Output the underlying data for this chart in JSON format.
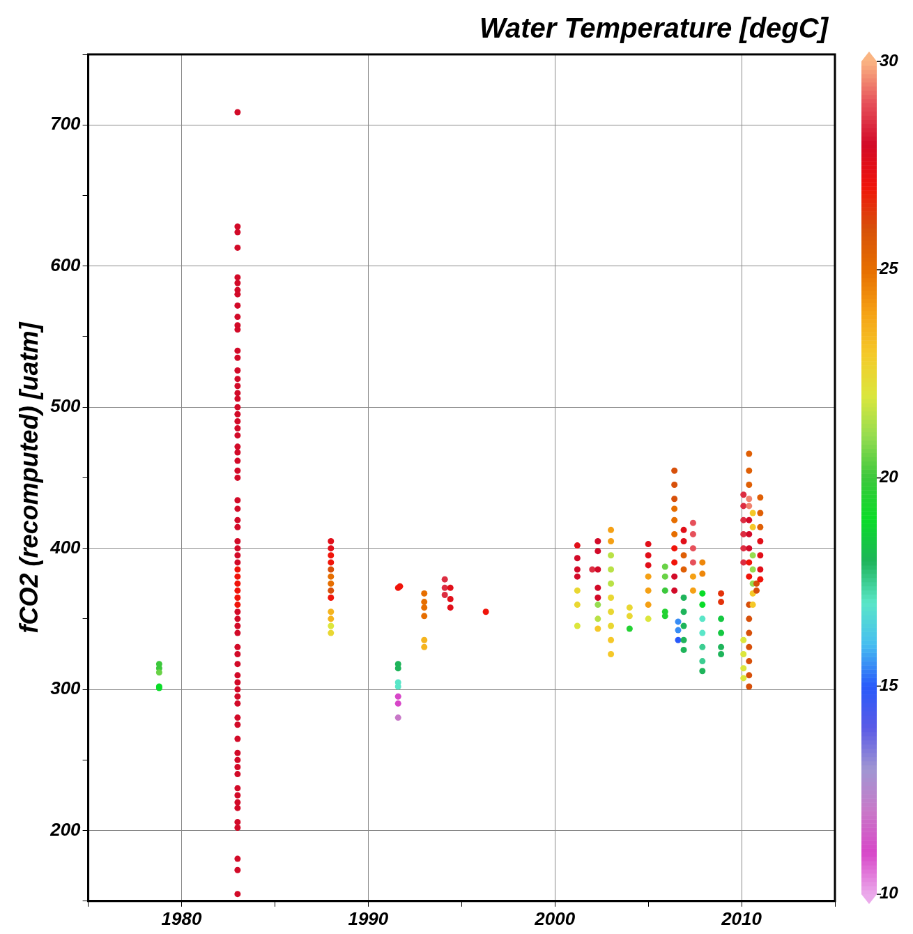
{
  "chart_data": {
    "type": "scatter",
    "ylabel": "fCO2 (recomputed) [uatm]",
    "clabel": "Water Temperature [degC]",
    "xlim": [
      1975,
      2015
    ],
    "xticks": [
      {
        "value": 1975,
        "label": null
      },
      1980,
      {
        "value": 1985,
        "label": null
      },
      1990,
      {
        "value": 1995,
        "label": null
      },
      2000,
      {
        "value": 2005,
        "label": null
      },
      2010,
      {
        "value": 2015,
        "label": null
      }
    ],
    "ylim": [
      150,
      750
    ],
    "yticks": [
      {
        "value": 150,
        "label": null
      },
      200,
      {
        "value": 250,
        "label": null
      },
      300,
      {
        "value": 350,
        "label": null
      },
      400,
      {
        "value": 450,
        "label": null
      },
      500,
      {
        "value": 550,
        "label": null
      },
      600,
      {
        "value": 650,
        "label": null
      },
      700,
      {
        "value": 750,
        "label": null
      }
    ],
    "clim": [
      10,
      30
    ],
    "cticks": [
      10,
      15,
      20,
      25,
      30
    ],
    "grid": true,
    "marker": "circle",
    "x": [
      1978.8,
      1978.8,
      1978.8,
      1978.8,
      1978.8,
      1983,
      1983,
      1983,
      1983,
      1983,
      1983,
      1983,
      1983,
      1983,
      1983,
      1983,
      1983,
      1983,
      1983,
      1983,
      1983,
      1983,
      1983,
      1983,
      1983,
      1983,
      1983,
      1983,
      1983,
      1983,
      1983,
      1983,
      1983,
      1983,
      1983,
      1983,
      1983,
      1983,
      1983,
      1983,
      1983,
      1983,
      1983,
      1983,
      1983,
      1983,
      1983,
      1983,
      1983,
      1983,
      1983,
      1983,
      1983,
      1983,
      1983,
      1983,
      1983,
      1983,
      1983,
      1983,
      1983,
      1983,
      1983,
      1983,
      1983,
      1983,
      1983,
      1983,
      1983,
      1983,
      1983,
      1983,
      1983,
      1983,
      1983,
      1983,
      1988,
      1988,
      1988,
      1988,
      1988,
      1988,
      1988,
      1988,
      1988,
      1988,
      1988,
      1988,
      1988,
      1991.6,
      1991.7,
      1991.6,
      1991.6,
      1991.6,
      1991.6,
      1991.6,
      1991.6,
      1991.6,
      1993,
      1993,
      1993,
      1993,
      1993,
      1993,
      1994.1,
      1994.1,
      1994.1,
      1994.4,
      1994.4,
      1994.4,
      1996.3,
      2001.2,
      2001.2,
      2001.2,
      2001.2,
      2001.2,
      2001.2,
      2001.2,
      2002,
      2002.3,
      2002.3,
      2002.3,
      2002.3,
      2002.3,
      2002.3,
      2002.3,
      2002.3,
      2003,
      2003,
      2003,
      2003,
      2003,
      2003,
      2003,
      2003,
      2003,
      2003,
      2004,
      2004,
      2004,
      2005,
      2005,
      2005,
      2005,
      2005,
      2005,
      2005,
      2005.9,
      2005.9,
      2005.9,
      2005.9,
      2005.9,
      2006.4,
      2006.4,
      2006.4,
      2006.4,
      2006.4,
      2006.4,
      2006.4,
      2006.4,
      2006.4,
      2006.4,
      2006.6,
      2006.6,
      2006.6,
      2006.9,
      2006.9,
      2006.9,
      2006.9,
      2006.9,
      2006.9,
      2006.9,
      2006.9,
      2006.9,
      2007.4,
      2007.4,
      2007.4,
      2007.4,
      2007.4,
      2007.4,
      2007.9,
      2007.9,
      2007.9,
      2007.9,
      2007.9,
      2007.9,
      2007.9,
      2007.9,
      2007.9,
      2008.9,
      2008.9,
      2008.9,
      2008.9,
      2008.9,
      2008.9,
      2010.1,
      2010.1,
      2010.1,
      2010.1,
      2010.1,
      2010.1,
      2010.1,
      2010.1,
      2010.1,
      2010.1,
      2010.4,
      2010.4,
      2010.4,
      2010.4,
      2010.4,
      2010.4,
      2010.4,
      2010.4,
      2010.4,
      2010.4,
      2010.4,
      2010.4,
      2010.4,
      2010.4,
      2010.4,
      2010.4,
      2010.4,
      2010.6,
      2010.6,
      2010.6,
      2010.6,
      2010.6,
      2010.6,
      2010.6,
      2010.8,
      2010.8,
      2011,
      2011,
      2011,
      2011,
      2011,
      2011,
      2011
    ],
    "values": [
      318,
      315,
      312,
      302,
      301,
      709,
      628,
      624,
      613,
      592,
      588,
      583,
      580,
      572,
      564,
      558,
      555,
      540,
      535,
      526,
      520,
      515,
      510,
      506,
      500,
      495,
      490,
      485,
      480,
      472,
      468,
      462,
      455,
      450,
      434,
      428,
      420,
      415,
      405,
      400,
      395,
      390,
      385,
      380,
      375,
      370,
      365,
      360,
      355,
      350,
      345,
      340,
      330,
      325,
      318,
      310,
      305,
      300,
      295,
      290,
      280,
      275,
      265,
      255,
      250,
      245,
      240,
      230,
      225,
      220,
      216,
      206,
      202,
      180,
      172,
      155,
      405,
      400,
      395,
      390,
      385,
      380,
      375,
      370,
      365,
      355,
      350,
      345,
      340,
      372,
      373,
      318,
      315,
      305,
      302,
      295,
      290,
      280,
      368,
      362,
      358,
      352,
      335,
      330,
      378,
      372,
      367,
      372,
      364,
      358,
      355,
      402,
      393,
      385,
      380,
      370,
      360,
      345,
      385,
      405,
      398,
      385,
      372,
      365,
      360,
      350,
      343,
      413,
      405,
      395,
      385,
      375,
      365,
      355,
      345,
      335,
      325,
      358,
      352,
      343,
      403,
      395,
      388,
      380,
      370,
      360,
      350,
      387,
      380,
      370,
      355,
      352,
      455,
      445,
      435,
      428,
      420,
      410,
      400,
      390,
      380,
      370,
      348,
      342,
      335,
      413,
      405,
      395,
      385,
      365,
      355,
      345,
      335,
      328,
      418,
      410,
      400,
      390,
      380,
      370,
      390,
      382,
      368,
      360,
      350,
      340,
      330,
      320,
      313,
      368,
      362,
      350,
      340,
      330,
      325,
      438,
      430,
      420,
      410,
      400,
      390,
      335,
      325,
      315,
      308,
      467,
      455,
      445,
      435,
      430,
      420,
      410,
      400,
      390,
      380,
      360,
      350,
      340,
      330,
      320,
      310,
      302,
      425,
      415,
      395,
      385,
      375,
      368,
      360,
      370,
      375,
      436,
      425,
      415,
      405,
      395,
      385,
      378
    ],
    "cvalues": [
      20,
      20,
      20.5,
      19,
      19,
      28,
      28,
      28,
      28,
      28,
      28,
      28,
      28,
      28,
      28,
      28,
      28,
      28,
      28,
      28,
      28,
      28,
      28,
      28,
      28,
      28,
      28,
      28,
      28,
      28,
      28,
      28,
      28,
      28,
      28,
      28,
      28,
      28,
      28,
      28,
      28,
      28,
      27,
      27,
      27,
      27,
      27,
      27,
      28,
      28,
      28,
      28,
      28,
      28,
      28,
      28,
      28,
      28,
      28,
      28,
      28,
      28,
      28,
      28,
      28,
      28,
      28,
      28,
      28,
      28,
      28,
      28,
      28,
      28,
      28,
      28,
      27.5,
      27.5,
      27,
      27,
      26,
      25,
      25,
      26,
      27,
      23.5,
      23.5,
      22,
      22.5,
      27,
      27,
      18,
      18,
      17,
      17,
      11,
      11,
      12,
      25,
      25,
      25,
      25,
      23.5,
      23.5,
      28.5,
      28.5,
      28.5,
      27.5,
      27.5,
      27.5,
      27,
      27.5,
      28,
      28,
      28,
      22.5,
      22.5,
      22,
      28.5,
      28,
      28,
      28,
      28,
      28,
      21,
      21.5,
      23,
      24,
      24,
      21.5,
      21.5,
      21.5,
      22.5,
      22.5,
      22.5,
      23,
      23,
      22.5,
      22.5,
      19.5,
      27.5,
      27.5,
      27.5,
      24,
      24,
      24,
      22,
      20.5,
      20.5,
      20,
      19.5,
      19.5,
      26,
      26,
      26,
      25,
      25,
      25,
      27,
      27,
      28,
      28,
      15.5,
      15.5,
      15,
      27.5,
      27.5,
      25.5,
      25.5,
      18,
      18,
      18,
      18,
      18,
      29,
      29,
      29,
      29,
      24,
      24,
      24.5,
      24.5,
      19,
      19,
      17,
      17,
      17.5,
      17.5,
      18,
      26.5,
      26.5,
      18.5,
      18.5,
      18,
      18,
      28.5,
      28.5,
      28.5,
      28.5,
      28.5,
      28.5,
      22,
      22,
      22,
      22,
      25.5,
      25.5,
      25.5,
      29.5,
      29.5,
      28,
      28,
      28,
      27,
      27,
      26,
      26,
      26,
      26,
      26,
      26,
      26,
      23,
      23,
      21,
      21,
      21,
      23,
      23,
      26,
      26,
      25.5,
      25.5,
      25.5,
      27.5,
      27.5,
      27.5,
      27
    ]
  }
}
